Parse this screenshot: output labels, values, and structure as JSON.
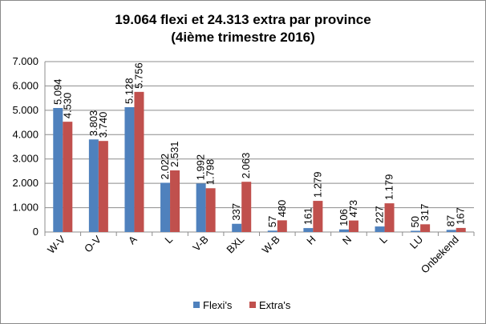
{
  "chart_data": {
    "type": "bar",
    "title": "19.064 flexi et 24.313 extra par province",
    "subtitle": "(4ième trimestre 2016)",
    "categories": [
      "W-V",
      "O-V",
      "A",
      "L",
      "V-B",
      "BXL",
      "W-B",
      "H",
      "N",
      "L",
      "LU",
      "Onbekend"
    ],
    "series": [
      {
        "name": "Flexi's",
        "color": "#4F81BD",
        "values": [
          5094,
          3803,
          5128,
          2022,
          1992,
          337,
          57,
          161,
          106,
          227,
          50,
          87
        ],
        "labels": [
          "5.094",
          "3.803",
          "5.128",
          "2.022",
          "1.992",
          "337",
          "57",
          "161",
          "106",
          "227",
          "50",
          "87"
        ]
      },
      {
        "name": "Extra's",
        "color": "#C0504D",
        "values": [
          4530,
          3740,
          5756,
          2531,
          1798,
          2063,
          480,
          1279,
          473,
          1179,
          317,
          167
        ],
        "labels": [
          "4.530",
          "3.740",
          "5.756",
          "2.531",
          "1.798",
          "2.063",
          "480",
          "1.279",
          "473",
          "1.179",
          "317",
          "167"
        ]
      }
    ],
    "ylim": [
      0,
      7000
    ],
    "yticks": [
      "0",
      "1.000",
      "2.000",
      "3.000",
      "4.000",
      "5.000",
      "6.000",
      "7.000"
    ],
    "grid": true,
    "legend_position": "bottom"
  }
}
